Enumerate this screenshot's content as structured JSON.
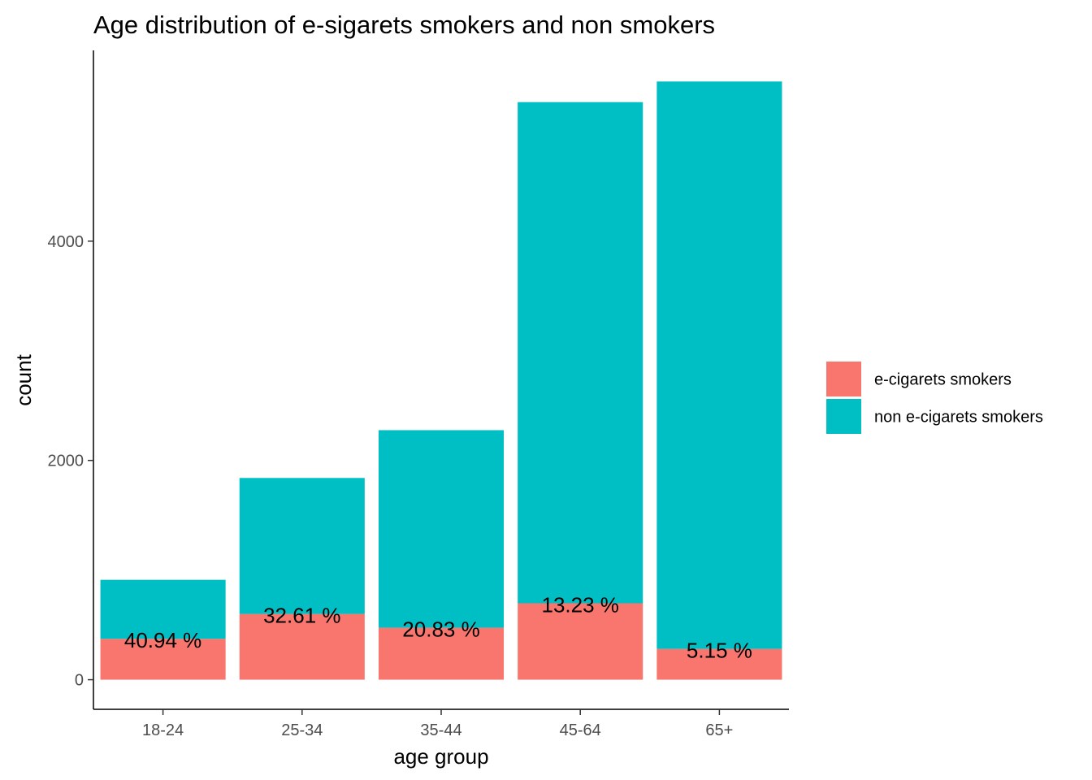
{
  "chart_data": {
    "type": "bar",
    "stacked": true,
    "title": "Age distribution of e-sigarets smokers and non smokers",
    "xlabel": "age group",
    "ylabel": "count",
    "categories": [
      "18-24",
      "25-34",
      "35-44",
      "45-64",
      "65+"
    ],
    "series": [
      {
        "name": "e-cigarets smokers",
        "color": "#F8766D",
        "values": [
          373,
          600,
          474,
          697,
          281
        ]
      },
      {
        "name": "non e-cigarets smokers",
        "color": "#00BFC4",
        "values": [
          538,
          1240,
          1802,
          4571,
          5175
        ]
      }
    ],
    "bar_labels": [
      "40.94 %",
      "32.61 %",
      "20.83 %",
      "13.23 %",
      "5.15 %"
    ],
    "yticks": [
      0,
      2000,
      4000
    ],
    "ylim": [
      -270,
      5740
    ],
    "grid": false,
    "legend_position": "right"
  }
}
